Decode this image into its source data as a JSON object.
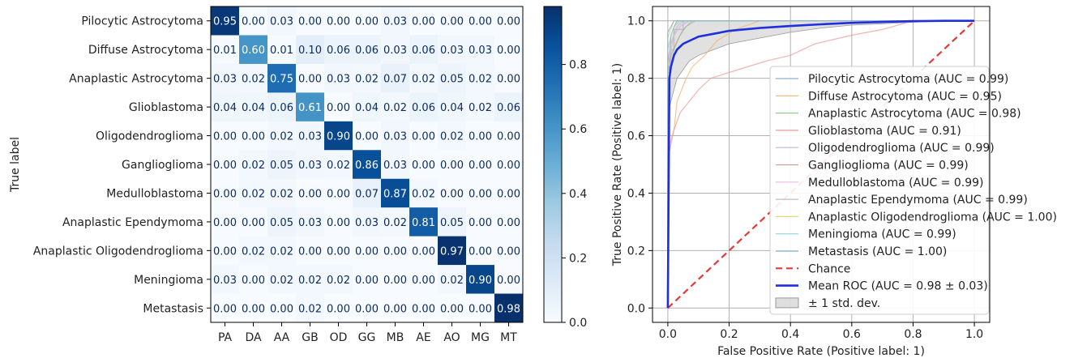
{
  "chart_data": [
    {
      "type": "heatmap",
      "row_labels": [
        "Pilocytic Astrocytoma",
        "Diffuse Astrocytoma",
        "Anaplastic Astrocytoma",
        "Glioblastoma",
        "Oligodendroglioma",
        "Ganglioglioma",
        "Medulloblastoma",
        "Anaplastic Ependymoma",
        "Anaplastic Oligodendroglioma",
        "Meningioma",
        "Metastasis"
      ],
      "col_labels": [
        "PA",
        "DA",
        "AA",
        "GB",
        "OD",
        "GG",
        "MB",
        "AE",
        "AO",
        "MG",
        "MT"
      ],
      "values": [
        [
          0.95,
          0.0,
          0.03,
          0.0,
          0.0,
          0.0,
          0.03,
          0.0,
          0.0,
          0.0,
          0.0
        ],
        [
          0.01,
          0.6,
          0.01,
          0.1,
          0.06,
          0.06,
          0.03,
          0.06,
          0.03,
          0.03,
          0.0
        ],
        [
          0.03,
          0.02,
          0.75,
          0.0,
          0.03,
          0.02,
          0.07,
          0.02,
          0.05,
          0.02,
          0.0
        ],
        [
          0.04,
          0.04,
          0.06,
          0.61,
          0.0,
          0.04,
          0.02,
          0.06,
          0.04,
          0.02,
          0.06
        ],
        [
          0.0,
          0.0,
          0.02,
          0.03,
          0.9,
          0.0,
          0.03,
          0.0,
          0.02,
          0.0,
          0.0
        ],
        [
          0.0,
          0.02,
          0.05,
          0.03,
          0.02,
          0.86,
          0.03,
          0.0,
          0.0,
          0.0,
          0.0
        ],
        [
          0.0,
          0.02,
          0.02,
          0.0,
          0.0,
          0.07,
          0.87,
          0.02,
          0.0,
          0.0,
          0.0
        ],
        [
          0.0,
          0.0,
          0.05,
          0.03,
          0.0,
          0.03,
          0.02,
          0.81,
          0.05,
          0.0,
          0.0
        ],
        [
          0.0,
          0.02,
          0.02,
          0.0,
          0.0,
          0.0,
          0.0,
          0.0,
          0.97,
          0.0,
          0.0
        ],
        [
          0.03,
          0.0,
          0.02,
          0.02,
          0.02,
          0.0,
          0.0,
          0.0,
          0.02,
          0.9,
          0.0
        ],
        [
          0.0,
          0.0,
          0.0,
          0.02,
          0.0,
          0.0,
          0.0,
          0.0,
          0.0,
          0.0,
          0.98
        ]
      ],
      "ylabel": "True label",
      "xlabel": "",
      "colormap": "Blues",
      "colorbar_range": [
        0.0,
        0.98
      ],
      "colorbar_ticks": [
        "0.0",
        "0.2",
        "0.4",
        "0.6",
        "0.8"
      ]
    },
    {
      "type": "line",
      "xlabel": "False Positive Rate (Positive label: 1)",
      "ylabel": "True Positive Rate (Positive label: 1)",
      "xlim": [
        -0.05,
        1.05
      ],
      "ylim": [
        -0.05,
        1.05
      ],
      "xticks": [
        "0.0",
        "0.2",
        "0.4",
        "0.6",
        "0.8",
        "1.0"
      ],
      "yticks": [
        "0.0",
        "0.2",
        "0.4",
        "0.6",
        "0.8",
        "1.0"
      ],
      "grid": true,
      "legend_position": "center-right",
      "series": [
        {
          "name": "Pilocytic Astrocytoma (AUC = 0.99)",
          "color": "#8cb3d6",
          "x": [
            0,
            0,
            0.01,
            0.01,
            0.02,
            0.02,
            0.05,
            0.05,
            1
          ],
          "y": [
            0,
            0.82,
            0.82,
            0.9,
            0.9,
            0.97,
            0.97,
            1.0,
            1.0
          ]
        },
        {
          "name": "Diffuse Astrocytoma (AUC = 0.95)",
          "color": "#f5b36b",
          "x": [
            0,
            0,
            0.02,
            0.03,
            0.06,
            0.08,
            0.12,
            0.16,
            0.22,
            0.3,
            1
          ],
          "y": [
            0,
            0.55,
            0.62,
            0.72,
            0.8,
            0.84,
            0.88,
            0.93,
            0.97,
            1.0,
            1.0
          ]
        },
        {
          "name": "Anaplastic Astrocytoma (AUC = 0.98)",
          "color": "#8fce8f",
          "x": [
            0,
            0,
            0.01,
            0.02,
            0.04,
            0.06,
            0.09,
            1
          ],
          "y": [
            0,
            0.75,
            0.84,
            0.9,
            0.95,
            0.98,
            1.0,
            1.0
          ]
        },
        {
          "name": "Glioblastoma (AUC = 0.91)",
          "color": "#ee9a9a",
          "x": [
            0,
            0,
            0.02,
            0.04,
            0.07,
            0.1,
            0.14,
            0.2,
            0.26,
            0.32,
            0.4,
            0.48,
            0.6,
            0.7,
            0.8,
            1
          ],
          "y": [
            0,
            0.52,
            0.62,
            0.68,
            0.72,
            0.76,
            0.8,
            0.82,
            0.84,
            0.86,
            0.88,
            0.92,
            0.95,
            0.97,
            1.0,
            1.0
          ]
        },
        {
          "name": "Oligodendroglioma (AUC = 0.99)",
          "color": "#c4b1da",
          "x": [
            0,
            0,
            0.01,
            0.02,
            0.04,
            0.07,
            1
          ],
          "y": [
            0,
            0.86,
            0.9,
            0.95,
            0.98,
            1.0,
            1.0
          ]
        },
        {
          "name": "Ganglioglioma (AUC = 0.99)",
          "color": "#c7a396",
          "x": [
            0,
            0,
            0.01,
            0.03,
            0.05,
            0.08,
            1
          ],
          "y": [
            0,
            0.82,
            0.88,
            0.93,
            0.97,
            1.0,
            1.0
          ]
        },
        {
          "name": "Medulloblastoma (AUC = 0.99)",
          "color": "#f2b8df",
          "x": [
            0,
            0,
            0.01,
            0.02,
            0.04,
            0.06,
            1
          ],
          "y": [
            0,
            0.85,
            0.9,
            0.95,
            0.98,
            1.0,
            1.0
          ]
        },
        {
          "name": "Anaplastic Ependymoma (AUC = 0.99)",
          "color": "#bdbdbd",
          "x": [
            0,
            0,
            0.01,
            0.02,
            0.03,
            0.05,
            1
          ],
          "y": [
            0,
            0.86,
            0.92,
            0.95,
            0.98,
            1.0,
            1.0
          ]
        },
        {
          "name": "Anaplastic Oligodendroglioma (AUC = 1.00)",
          "color": "#e2d77c",
          "x": [
            0,
            0,
            0.01,
            0.02,
            1
          ],
          "y": [
            0,
            0.94,
            0.97,
            1.0,
            1.0
          ]
        },
        {
          "name": "Meningioma (AUC = 0.99)",
          "color": "#8fd7e2",
          "x": [
            0,
            0,
            0.01,
            0.02,
            0.04,
            1
          ],
          "y": [
            0,
            0.9,
            0.95,
            0.98,
            1.0,
            1.0
          ]
        },
        {
          "name": "Metastasis (AUC = 1.00)",
          "color": "#7fa9c9",
          "x": [
            0,
            0,
            0.01,
            0.02,
            1
          ],
          "y": [
            0,
            0.96,
            0.98,
            1.0,
            1.0
          ]
        },
        {
          "name": "Chance",
          "color": "#e53935",
          "dash": "dashed",
          "x": [
            0,
            1
          ],
          "y": [
            0,
            1
          ]
        },
        {
          "name": "Mean ROC (AUC = 0.98 ± 0.03)",
          "color": "#1f2fe0",
          "x": [
            0,
            0.005,
            0.01,
            0.02,
            0.03,
            0.05,
            0.07,
            0.1,
            0.15,
            0.2,
            0.3,
            0.4,
            0.5,
            0.6,
            0.7,
            0.8,
            0.9,
            1.0
          ],
          "y": [
            0,
            0.8,
            0.84,
            0.88,
            0.9,
            0.92,
            0.93,
            0.945,
            0.955,
            0.965,
            0.975,
            0.982,
            0.988,
            0.993,
            0.996,
            0.999,
            1.0,
            1.0
          ]
        }
      ],
      "band": {
        "name": "± 1 std. dev.",
        "color": "#bdbdbd",
        "x": [
          0,
          0.005,
          0.01,
          0.02,
          0.03,
          0.05,
          0.07,
          0.1,
          0.15,
          0.2,
          0.3,
          0.4,
          0.5,
          0.6,
          0.7,
          0.8,
          0.9,
          1.0
        ],
        "upper": [
          0,
          0.88,
          0.95,
          0.98,
          1.0,
          1.0,
          1.0,
          1.0,
          1.0,
          1.0,
          1.0,
          1.0,
          1.0,
          1.0,
          1.0,
          1.0,
          1.0,
          1.0
        ],
        "lower": [
          0,
          0.7,
          0.72,
          0.76,
          0.8,
          0.83,
          0.86,
          0.88,
          0.9,
          0.92,
          0.94,
          0.96,
          0.975,
          0.985,
          0.99,
          0.995,
          1.0,
          1.0
        ]
      }
    }
  ]
}
